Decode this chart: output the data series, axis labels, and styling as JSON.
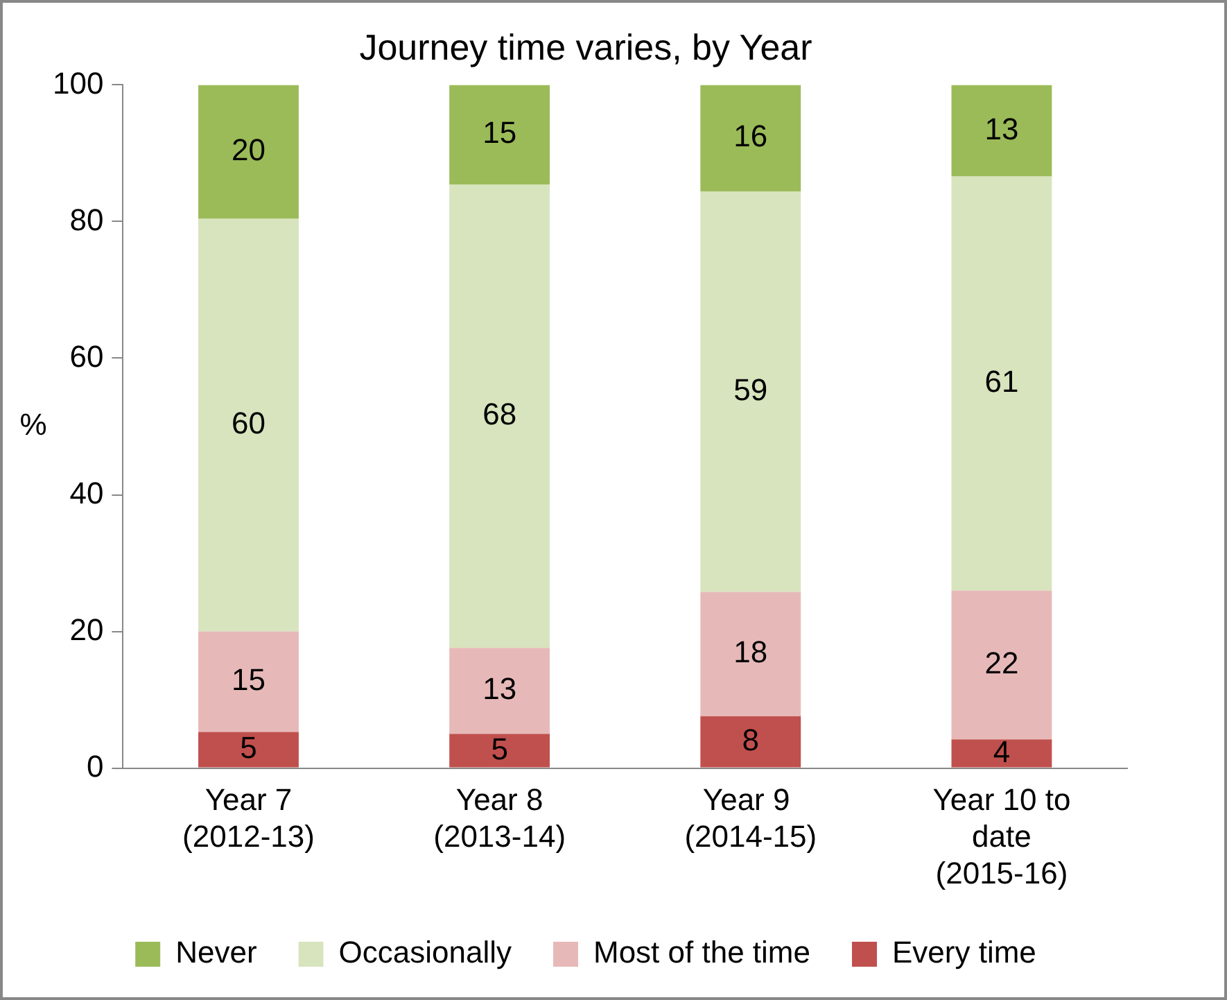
{
  "chart_data": {
    "type": "bar",
    "title": "Journey time varies, by Year",
    "ylabel": "%",
    "categories": [
      "Year 7 (2012-13)",
      "Year 8 (2013-14)",
      "Year 9  (2014-15)",
      "Year 10 to date (2015-16)"
    ],
    "stacked": true,
    "ylim": [
      0,
      100
    ],
    "yticks": [
      0,
      20,
      40,
      60,
      80,
      100
    ],
    "grid": false,
    "legend": "bottom",
    "series": [
      {
        "name": "Every time",
        "color": "#c0504d",
        "values": [
          5.3,
          5,
          7.6,
          4.2
        ],
        "value_labels": [
          "5",
          "5",
          "8",
          "4"
        ]
      },
      {
        "name": "Most of the time",
        "color": "#e6b9b8",
        "values": [
          14.7,
          12.6,
          18.2,
          21.8
        ],
        "value_labels": [
          "15",
          "13",
          "18",
          "22"
        ]
      },
      {
        "name": "Occasionally",
        "color": "#d7e4bd",
        "values": [
          60.4,
          67.8,
          58.6,
          60.6
        ],
        "value_labels": [
          "60",
          "68",
          "59",
          "61"
        ]
      },
      {
        "name": "Never",
        "color": "#9bbb59",
        "values": [
          19.6,
          14.6,
          15.6,
          13.4
        ],
        "value_labels": [
          "20",
          "15",
          "16",
          "13"
        ]
      }
    ]
  }
}
